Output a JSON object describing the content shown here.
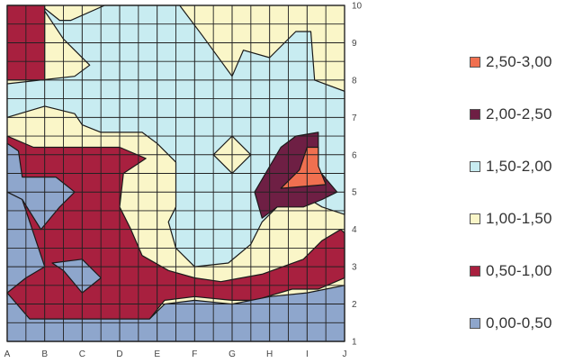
{
  "chart_data": {
    "type": "heatmap",
    "subtype": "filled-contour",
    "x_ticks": [
      "A",
      "B",
      "C",
      "D",
      "E",
      "F",
      "G",
      "H",
      "I",
      "J"
    ],
    "y_ticks": [
      "1",
      "2",
      "3",
      "4",
      "5",
      "6",
      "7",
      "8",
      "9",
      "10"
    ],
    "y_axis_side": "right",
    "ylim": [
      1,
      10
    ],
    "grid": true,
    "legend_position": "right",
    "legend": [
      {
        "label": "2,50-3,00",
        "color": "#f07050"
      },
      {
        "label": "2,00-2,50",
        "color": "#6e1f44"
      },
      {
        "label": "1,50-2,00",
        "color": "#c8ecf1"
      },
      {
        "label": "1,00-1,50",
        "color": "#faf6c8"
      },
      {
        "label": "0,50-1,00",
        "color": "#a8203f"
      },
      {
        "label": "0,00-0,50",
        "color": "#8ea6cc"
      }
    ],
    "regions": [
      {
        "band": "1,00-1,50",
        "points": [
          [
            0,
            10
          ],
          [
            9,
            10
          ],
          [
            9,
            1
          ],
          [
            0,
            1
          ]
        ]
      },
      {
        "band": "1,50-2,00",
        "points": [
          [
            0.9,
            10
          ],
          [
            1.4,
            9.6
          ],
          [
            1.7,
            9.6
          ],
          [
            2.6,
            10
          ],
          [
            4.6,
            10
          ],
          [
            5.2,
            9.2
          ],
          [
            6.0,
            8.1
          ],
          [
            6.3,
            8.8
          ],
          [
            7.0,
            8.6
          ],
          [
            7.7,
            9.3
          ],
          [
            8.1,
            9.3
          ],
          [
            8.2,
            8.0
          ],
          [
            9,
            7.7
          ],
          [
            9,
            4.4
          ],
          [
            8.4,
            4.6
          ],
          [
            7.9,
            4.9
          ],
          [
            7.2,
            4.6
          ],
          [
            6.8,
            4.2
          ],
          [
            6.5,
            3.6
          ],
          [
            5.9,
            3.1
          ],
          [
            5.0,
            3.0
          ],
          [
            4.5,
            3.5
          ],
          [
            4.3,
            4.2
          ],
          [
            4.5,
            4.6
          ],
          [
            4.5,
            5.8
          ],
          [
            4.0,
            6.3
          ],
          [
            3.6,
            6.6
          ],
          [
            2.5,
            6.6
          ],
          [
            2.0,
            6.8
          ],
          [
            1.8,
            7.1
          ],
          [
            1.0,
            7.3
          ],
          [
            0,
            7.0
          ],
          [
            0,
            7.9
          ],
          [
            1.8,
            8.1
          ],
          [
            2.2,
            8.4
          ],
          [
            1.5,
            9.1
          ]
        ]
      },
      {
        "band": "1,00-1,50",
        "points": [
          [
            6,
            6.5
          ],
          [
            6.5,
            6.0
          ],
          [
            6,
            5.5
          ],
          [
            5.5,
            6.0
          ]
        ]
      },
      {
        "band": "0,50-1,00",
        "points": [
          [
            0,
            10
          ],
          [
            1.0,
            10
          ],
          [
            1.0,
            8.0
          ],
          [
            0,
            8.0
          ]
        ]
      },
      {
        "band": "0,50-1,00",
        "points": [
          [
            0,
            6.5
          ],
          [
            0.7,
            6.2
          ],
          [
            1.8,
            6.2
          ],
          [
            3.0,
            6.2
          ],
          [
            3.7,
            5.9
          ],
          [
            3.1,
            5.5
          ],
          [
            3.0,
            4.6
          ],
          [
            3.3,
            4.0
          ],
          [
            3.6,
            3.3
          ],
          [
            4.3,
            2.9
          ],
          [
            5.0,
            2.7
          ],
          [
            5.7,
            2.6
          ],
          [
            6.8,
            2.8
          ],
          [
            7.9,
            3.2
          ],
          [
            8.4,
            3.7
          ],
          [
            8.9,
            4.0
          ],
          [
            9,
            3.9
          ],
          [
            9,
            2.7
          ],
          [
            8.3,
            2.4
          ],
          [
            7.6,
            2.4
          ],
          [
            6.6,
            2.1
          ],
          [
            6.0,
            2.1
          ],
          [
            5.0,
            2.2
          ],
          [
            4.2,
            2.1
          ],
          [
            3.8,
            1.6
          ],
          [
            3.0,
            1.6
          ],
          [
            2.0,
            1.6
          ],
          [
            1.0,
            1.6
          ],
          [
            0.5,
            1.6
          ],
          [
            0,
            2.2
          ]
        ]
      },
      {
        "band": "0,00-0,50",
        "points": [
          [
            0,
            6.3
          ],
          [
            0.3,
            6.1
          ],
          [
            0.4,
            5.4
          ],
          [
            1.3,
            5.4
          ],
          [
            1.8,
            5.0
          ],
          [
            1.4,
            4.6
          ],
          [
            0.9,
            4.0
          ],
          [
            0.4,
            4.8
          ],
          [
            0,
            5.0
          ]
        ]
      },
      {
        "band": "0,00-0,50",
        "points": [
          [
            0,
            5.0
          ],
          [
            0.4,
            4.8
          ],
          [
            1.0,
            3.0
          ],
          [
            0.5,
            2.7
          ],
          [
            0,
            2.3
          ]
        ]
      },
      {
        "band": "0,00-0,50",
        "points": [
          [
            1.2,
            3.1
          ],
          [
            2.0,
            3.2
          ],
          [
            2.5,
            2.7
          ],
          [
            2.0,
            2.3
          ],
          [
            1.5,
            2.9
          ]
        ]
      },
      {
        "band": "0,00-0,50",
        "points": [
          [
            0,
            2.3
          ],
          [
            0.6,
            1.6
          ],
          [
            3.8,
            1.6
          ],
          [
            4.2,
            2.0
          ],
          [
            5.0,
            2.1
          ],
          [
            6.0,
            2.0
          ],
          [
            7.0,
            2.2
          ],
          [
            8.0,
            2.3
          ],
          [
            9,
            2.5
          ],
          [
            9,
            1
          ],
          [
            0,
            1
          ]
        ]
      },
      {
        "band": "2,00-2,50",
        "points": [
          [
            6.6,
            5.0
          ],
          [
            7.3,
            6.2
          ],
          [
            7.7,
            6.5
          ],
          [
            8.3,
            6.6
          ],
          [
            8.3,
            5.6
          ],
          [
            8.8,
            5.0
          ],
          [
            8.4,
            4.8
          ],
          [
            7.9,
            4.6
          ],
          [
            7.2,
            4.6
          ],
          [
            6.8,
            4.3
          ]
        ]
      },
      {
        "band": "2,50-3,00",
        "points": [
          [
            7.3,
            5.1
          ],
          [
            7.8,
            5.6
          ],
          [
            8.0,
            6.2
          ],
          [
            8.3,
            6.2
          ],
          [
            8.3,
            5.7
          ],
          [
            8.5,
            5.2
          ]
        ]
      }
    ]
  }
}
